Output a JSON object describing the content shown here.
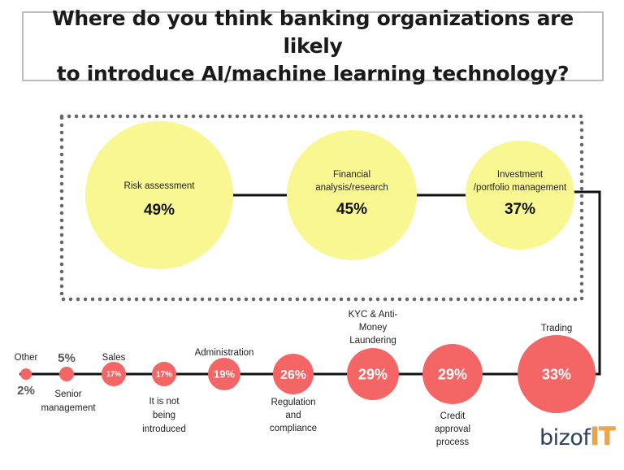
{
  "chart_data": {
    "type": "bubble",
    "title_line1": "Where do you think banking organizations are likely",
    "title_line2": "to introduce AI/machine learning technology?",
    "top_row": [
      {
        "label": [
          "Risk assessment"
        ],
        "value": 49,
        "value_label": "49%"
      },
      {
        "label": [
          "Financial",
          "analysis/research"
        ],
        "value": 45,
        "value_label": "45%"
      },
      {
        "label": [
          "Investment",
          "/portfolio management"
        ],
        "value": 37,
        "value_label": "37%"
      }
    ],
    "bottom_row": [
      {
        "label": [
          "Other"
        ],
        "value": 2,
        "value_label": "2%"
      },
      {
        "label": [
          "Senior",
          "management"
        ],
        "value": 5,
        "value_label": "5%"
      },
      {
        "label": [
          "Sales"
        ],
        "value": 17,
        "value_label": "17%"
      },
      {
        "label": [
          "It is not",
          "being",
          "introduced"
        ],
        "value": 17,
        "value_label": "17%"
      },
      {
        "label": [
          "Administration"
        ],
        "value": 19,
        "value_label": "19%"
      },
      {
        "label": [
          "Regulation",
          "and",
          "compliance"
        ],
        "value": 26,
        "value_label": "26%"
      },
      {
        "label": [
          "KYC & Anti-",
          "Money",
          "Laundering"
        ],
        "value": 29,
        "value_label": "29%"
      },
      {
        "label": [
          "Credit",
          "approval",
          "process"
        ],
        "value": 29,
        "value_label": "29%"
      },
      {
        "label": [
          "Trading"
        ],
        "value": 33,
        "value_label": "33%"
      }
    ],
    "colors": {
      "top_bubble": "#f8f792",
      "bottom_bubble": "#f46565",
      "line": "#111111",
      "dotted_border": "#666666"
    }
  },
  "brand": {
    "part1": "bizof",
    "part2": "IT"
  }
}
